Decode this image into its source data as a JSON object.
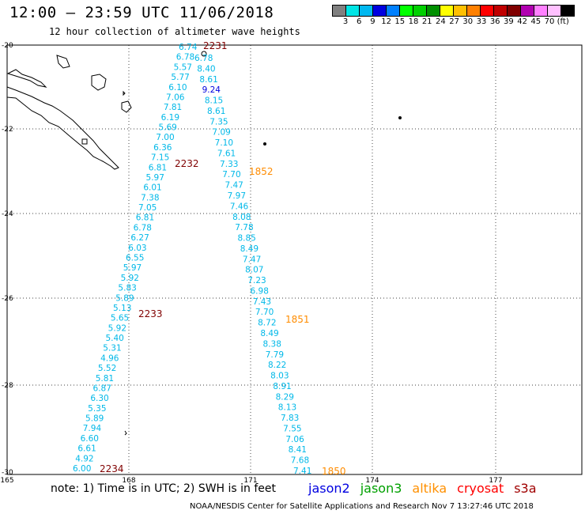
{
  "header": {
    "title": "12:00 – 23:59 UTC 11/06/2018",
    "subtitle": "12 hour collection of altimeter wave heights"
  },
  "colorbar": {
    "colors": [
      "#808080",
      "#00e5e5",
      "#00b8f0",
      "#0000e0",
      "#0080ff",
      "#00ff00",
      "#00d000",
      "#008f00",
      "#ffff00",
      "#ffc000",
      "#ff8000",
      "#ff0000",
      "#c00000",
      "#800000",
      "#b000b0",
      "#ff80ff",
      "#ffc0ff",
      "#000000"
    ],
    "labels": [
      "3",
      "6",
      "9",
      "12",
      "15",
      "18",
      "21",
      "24",
      "27",
      "30",
      "33",
      "36",
      "39",
      "42",
      "45",
      "70",
      "(ft)"
    ]
  },
  "axes": {
    "lon_labels": [
      "165",
      "168",
      "171",
      "174",
      "177"
    ],
    "lat_labels": [
      "-20",
      "-22",
      "-24",
      "-26",
      "-28",
      "-30"
    ]
  },
  "tracks": {
    "west": {
      "color": "#00b8e8",
      "values": [
        "6.74",
        "6.78",
        "5.57",
        "5.77",
        "6.10",
        "7.06",
        "7.81",
        "6.19",
        "5.69",
        "7.00",
        "6.36",
        "7.15",
        "6.81",
        "5.97",
        "6.01",
        "7.38",
        "7.05",
        "6.81",
        "6.78",
        "6.27",
        "6.03",
        "6.55",
        "5.97",
        "5.92",
        "5.83",
        "5.89",
        "5.13",
        "5.65",
        "5.92",
        "5.40",
        "5.31",
        "4.96",
        "5.52",
        "5.81",
        "6.87",
        "6.30",
        "5.35",
        "5.89",
        "7.94",
        "6.60",
        "6.61",
        "4.92",
        "6.00"
      ],
      "passes": [
        {
          "label": "2231",
          "color": "#800000"
        },
        {
          "label": "2232",
          "color": "#800000"
        },
        {
          "label": "2233",
          "color": "#800000"
        },
        {
          "label": "2234",
          "color": "#800000"
        }
      ]
    },
    "east": {
      "color": "#00b8e8",
      "values": [
        "6.78",
        "8.40",
        "8.61",
        "9.24",
        "8.15",
        "8.61",
        "7.35",
        "7.09",
        "7.10",
        "7.61",
        "7.33",
        "7.70",
        "7.47",
        "7.97",
        "7.46",
        "8.08",
        "7.78",
        "8.85",
        "8.49",
        "7.47",
        "8.07",
        "7.23",
        "6.98",
        "7.43",
        "7.70",
        "8.72",
        "8.49",
        "8.38",
        "7.79",
        "8.22",
        "8.03",
        "8.91",
        "8.29",
        "8.13",
        "7.83",
        "7.55",
        "7.06",
        "8.41",
        "7.68",
        "7.41"
      ],
      "highlight_value": "9.24",
      "highlight_color": "#0000e0",
      "passes": [
        {
          "label": "1852",
          "color": "#ff8c00"
        },
        {
          "label": "1851",
          "color": "#ff8c00"
        },
        {
          "label": "1850",
          "color": "#ff8c00"
        }
      ]
    }
  },
  "footer": {
    "note": "note:  1) Time is in UTC;  2) SWH is in feet",
    "missions": [
      {
        "name": "jason2",
        "color": "#0000e0"
      },
      {
        "name": "jason3",
        "color": "#00a000"
      },
      {
        "name": "altika",
        "color": "#ff9000"
      },
      {
        "name": "cryosat",
        "color": "#ff0000"
      },
      {
        "name": "s3a",
        "color": "#a00000"
      }
    ],
    "credit": "NOAA/NESDIS Center for Satellite Applications and Research    Nov  7 13:27:46 UTC 2018"
  }
}
